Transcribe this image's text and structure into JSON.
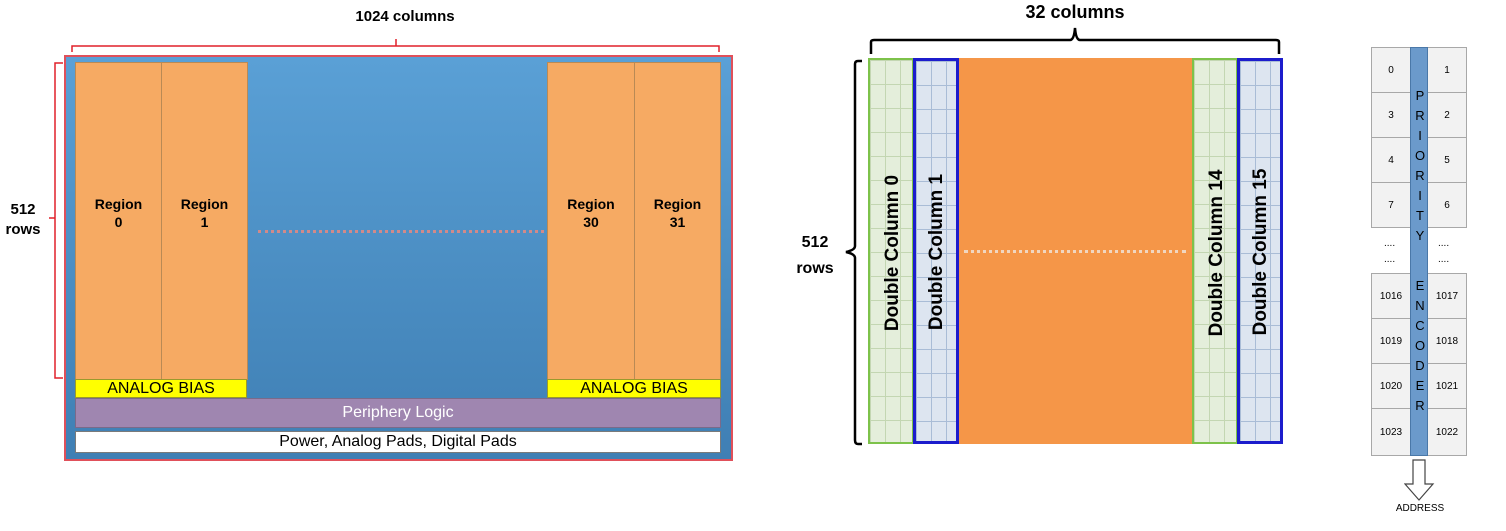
{
  "left_diagram": {
    "width_label": "1024 columns",
    "height_label_line1": "512",
    "height_label_line2": "rows",
    "regions": [
      {
        "line1": "Region",
        "line2": "0"
      },
      {
        "line1": "Region",
        "line2": "1"
      },
      {
        "line1": "Region",
        "line2": "30"
      },
      {
        "line1": "Region",
        "line2": "31"
      }
    ],
    "analog_bias_left": "ANALOG BIAS",
    "analog_bias_right": "ANALOG BIAS",
    "periphery": "Periphery Logic",
    "power": "Power, Analog Pads, Digital Pads"
  },
  "middle_diagram": {
    "width_label": "32 columns",
    "height_label_line1": "512",
    "height_label_line2": "rows",
    "columns": [
      "Double Column 0",
      "Double Column 1",
      "Double Column 14",
      "Double Column 15"
    ]
  },
  "right_diagram": {
    "left_cells": [
      "0",
      "3",
      "4",
      "7",
      "1016",
      "1019",
      "1020",
      "1023"
    ],
    "right_cells": [
      "1",
      "2",
      "5",
      "6",
      "1017",
      "1018",
      "1021",
      "1022"
    ],
    "ellipsis": "....",
    "encoder_letters": [
      "P",
      "R",
      "I",
      "O",
      "R",
      "I",
      "T",
      "Y",
      "E",
      "N",
      "C",
      "O",
      "D",
      "E",
      "R"
    ],
    "output_label": "ADDRESS"
  },
  "colors": {
    "chip_blue": "#4c8fc4",
    "region_orange": "#f6aa63",
    "analog_bias_yellow": "#ffff00",
    "periphery_purple": "#9f86b0",
    "double_column_green": "#7dc24a",
    "double_column_blue": "#1c1ccc",
    "middle_orange": "#f59648",
    "encoder_blue": "#6b9acb",
    "bracket_red": "#e0202a"
  }
}
